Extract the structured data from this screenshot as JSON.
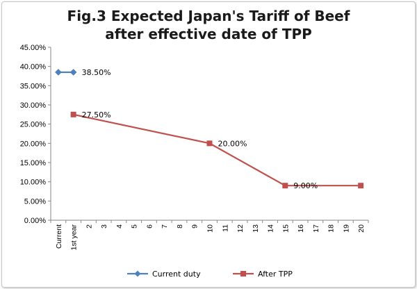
{
  "chart_data": {
    "type": "line",
    "title_line1": "Fig.3 Expected Japan's Tariff of Beef",
    "title_line2": "after effective date of TPP",
    "categories": [
      "Current",
      "1st year",
      "2",
      "3",
      "4",
      "5",
      "6",
      "7",
      "8",
      "9",
      "10",
      "11",
      "12",
      "13",
      "14",
      "15",
      "16",
      "17",
      "18",
      "19",
      "20"
    ],
    "ylim": [
      0,
      45
    ],
    "y_ticks": [
      "0.00%",
      "5.00%",
      "10.00%",
      "15.00%",
      "20.00%",
      "25.00%",
      "30.00%",
      "35.00%",
      "40.00%",
      "45.00%"
    ],
    "grid": "none",
    "legend_position": "bottom",
    "series": [
      {
        "name": "Current duty",
        "color": "#4f81bd",
        "marker": "diamond",
        "points": [
          {
            "category": "Current",
            "value": 38.5
          },
          {
            "category": "1st year",
            "value": 38.5
          }
        ],
        "labels": [
          {
            "category": "1st year",
            "value": 38.5,
            "text": "38.50%"
          }
        ]
      },
      {
        "name": "After TPP",
        "color": "#c0504d",
        "marker": "square",
        "points": [
          {
            "category": "1st year",
            "value": 27.5
          },
          {
            "category": "10",
            "value": 20.0
          },
          {
            "category": "15",
            "value": 9.0
          },
          {
            "category": "20",
            "value": 9.0
          }
        ],
        "labels": [
          {
            "category": "1st year",
            "value": 27.5,
            "text": "27.50%"
          },
          {
            "category": "10",
            "value": 20.0,
            "text": "20.00%"
          },
          {
            "category": "15",
            "value": 9.0,
            "text": "9.00%"
          }
        ]
      }
    ]
  }
}
